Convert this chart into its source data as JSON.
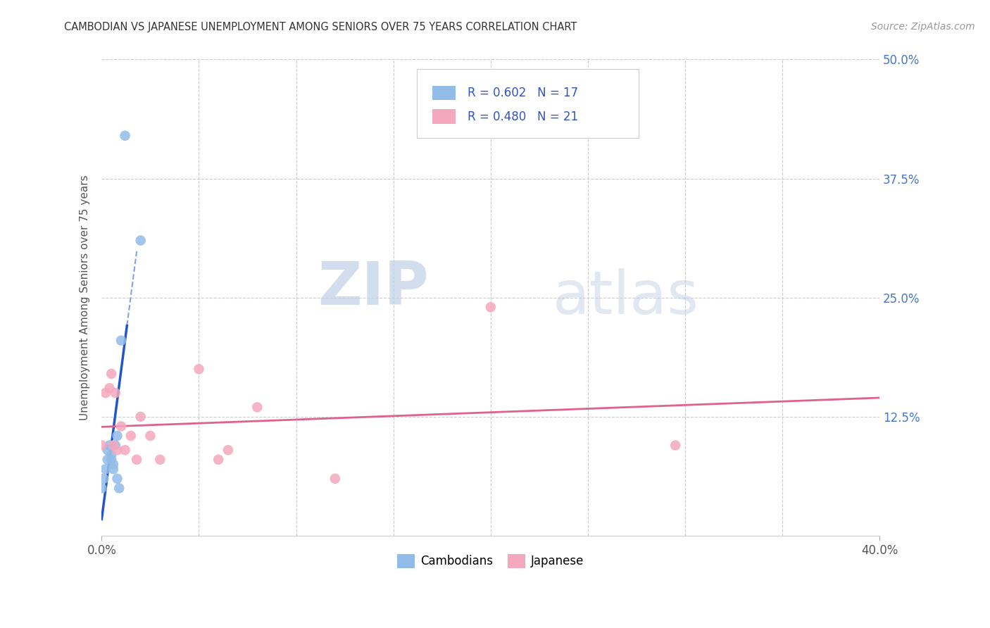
{
  "title": "CAMBODIAN VS JAPANESE UNEMPLOYMENT AMONG SENIORS OVER 75 YEARS CORRELATION CHART",
  "source": "Source: ZipAtlas.com",
  "ylabel": "Unemployment Among Seniors over 75 years",
  "xlim": [
    0.0,
    0.4
  ],
  "ylim": [
    0.0,
    0.5
  ],
  "cambodian_color": "#92bce8",
  "japanese_color": "#f4a8be",
  "trendline_cambodian_color": "#2255cc",
  "trendline_japanese_color": "#e06090",
  "background_color": "#ffffff",
  "grid_color": "#cccccc",
  "watermark_zip_color": "#c0d0e8",
  "watermark_atlas_color": "#c0cce0",
  "right_tick_color": "#4477cc",
  "cambodian_x": [
    0.0,
    0.001,
    0.002,
    0.003,
    0.003,
    0.004,
    0.005,
    0.005,
    0.006,
    0.006,
    0.007,
    0.008,
    0.008,
    0.009,
    0.01,
    0.012,
    0.02
  ],
  "cambodian_y": [
    0.05,
    0.06,
    0.07,
    0.08,
    0.09,
    0.095,
    0.085,
    0.08,
    0.075,
    0.07,
    0.095,
    0.105,
    0.06,
    0.05,
    0.205,
    0.42,
    0.31
  ],
  "japanese_x": [
    0.0,
    0.002,
    0.004,
    0.005,
    0.006,
    0.007,
    0.008,
    0.01,
    0.012,
    0.015,
    0.018,
    0.02,
    0.025,
    0.03,
    0.05,
    0.06,
    0.065,
    0.08,
    0.12,
    0.2,
    0.295
  ],
  "japanese_y": [
    0.095,
    0.15,
    0.155,
    0.17,
    0.095,
    0.15,
    0.09,
    0.115,
    0.09,
    0.105,
    0.08,
    0.125,
    0.105,
    0.08,
    0.175,
    0.08,
    0.09,
    0.135,
    0.06,
    0.24,
    0.095
  ]
}
